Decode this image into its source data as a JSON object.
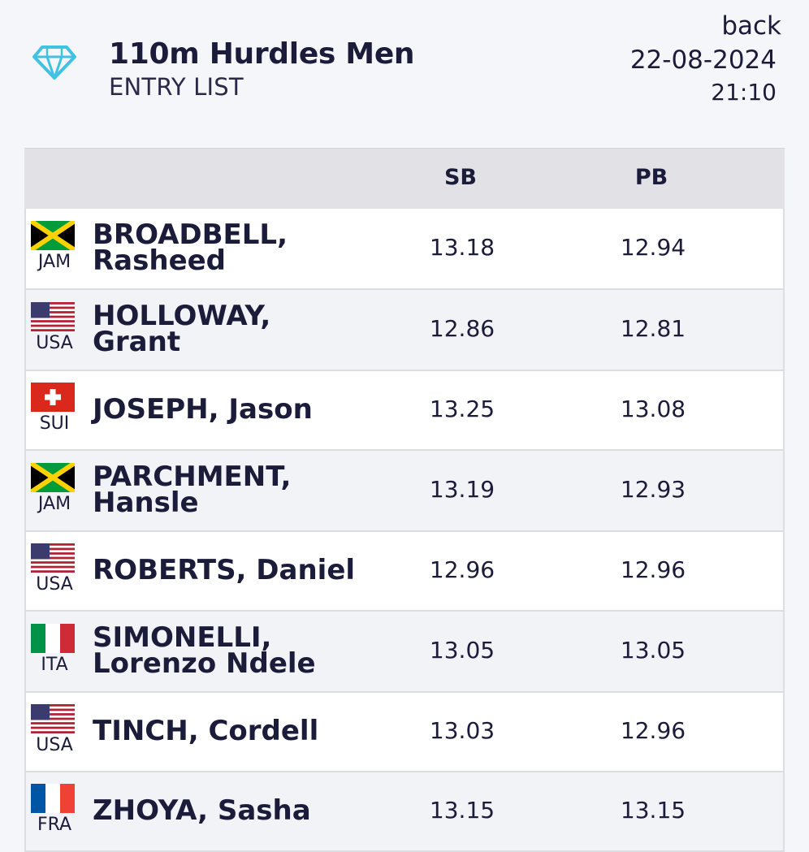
{
  "header": {
    "title": "110m Hurdles Men",
    "subtitle": "ENTRY LIST",
    "back_label": "back",
    "date": "22-08-2024",
    "time": "21:10",
    "logo_icon": "diamond-icon",
    "accent_color": "#3fc3e0"
  },
  "table": {
    "columns": [
      "",
      "SB",
      "PB"
    ],
    "rows": [
      {
        "country": "JAM",
        "flag": "jamaica",
        "name": "BROADBELL, Rasheed",
        "name_lines": [
          "BROADBELL,",
          "Rasheed"
        ],
        "sb": "13.18",
        "pb": "12.94"
      },
      {
        "country": "USA",
        "flag": "usa",
        "name": "HOLLOWAY, Grant",
        "name_lines": [
          "HOLLOWAY,",
          "Grant"
        ],
        "sb": "12.86",
        "pb": "12.81"
      },
      {
        "country": "SUI",
        "flag": "switzerland",
        "name": "JOSEPH, Jason",
        "name_lines": [
          "JOSEPH, Jason"
        ],
        "sb": "13.25",
        "pb": "13.08"
      },
      {
        "country": "JAM",
        "flag": "jamaica",
        "name": "PARCHMENT, Hansle",
        "name_lines": [
          "PARCHMENT,",
          "Hansle"
        ],
        "sb": "13.19",
        "pb": "12.93"
      },
      {
        "country": "USA",
        "flag": "usa",
        "name": "ROBERTS, Daniel",
        "name_lines": [
          "ROBERTS, Daniel"
        ],
        "sb": "12.96",
        "pb": "12.96"
      },
      {
        "country": "ITA",
        "flag": "italy",
        "name": "SIMONELLI, Lorenzo Ndele",
        "name_lines": [
          "SIMONELLI,",
          "Lorenzo Ndele"
        ],
        "sb": "13.05",
        "pb": "13.05"
      },
      {
        "country": "USA",
        "flag": "usa",
        "name": "TINCH, Cordell",
        "name_lines": [
          "TINCH, Cordell"
        ],
        "sb": "13.03",
        "pb": "12.96"
      },
      {
        "country": "FRA",
        "flag": "france",
        "name": "ZHOYA, Sasha",
        "name_lines": [
          "ZHOYA, Sasha"
        ],
        "sb": "13.15",
        "pb": "13.15"
      }
    ]
  }
}
